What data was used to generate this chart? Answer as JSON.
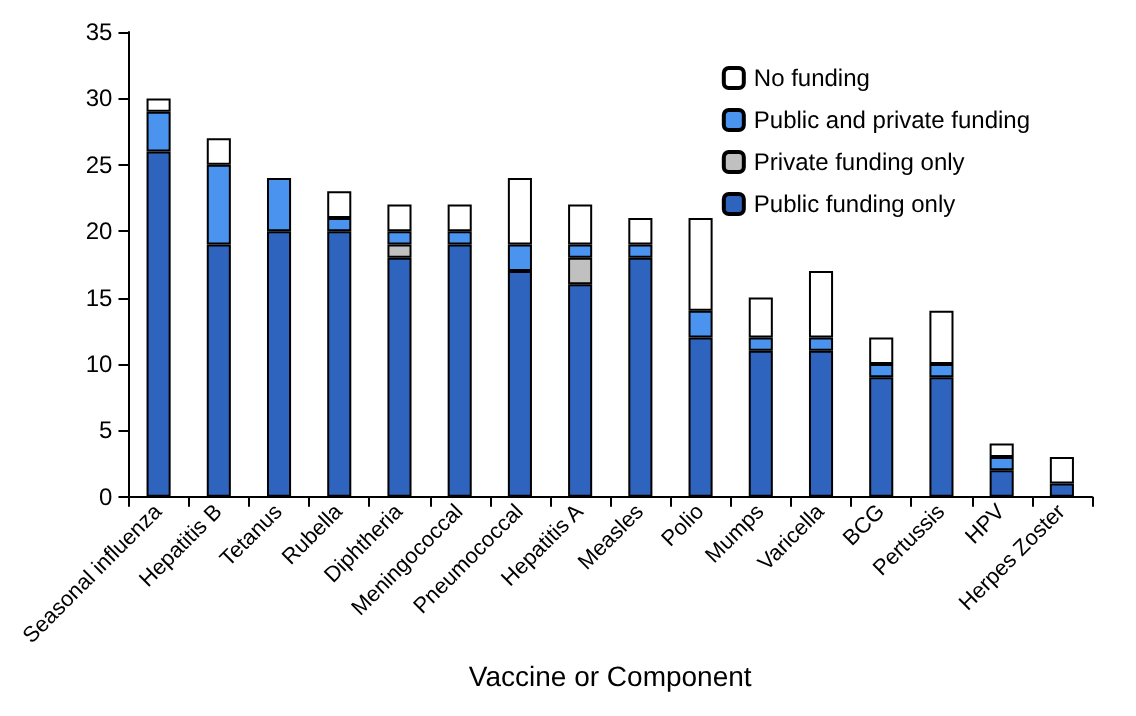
{
  "chart_data": {
    "type": "bar",
    "stacked": true,
    "xlabel": "Vaccine or Component",
    "categories": [
      "Seasonal influenza",
      "Hepatitis B",
      "Tetanus",
      "Rubella",
      "Diphtheria",
      "Meningococcal",
      "Pneumococcal",
      "Hepatitis A",
      "Measles",
      "Polio",
      "Mumps",
      "Varicella",
      "BCG",
      "Pertussis",
      "HPV",
      "Herpes Zoster"
    ],
    "series": [
      {
        "name": "Public funding only",
        "color": "#2e64be",
        "values": [
          26,
          19,
          20,
          20,
          18,
          19,
          17,
          16,
          18,
          12,
          11,
          11,
          9,
          9,
          2,
          1
        ]
      },
      {
        "name": "Private funding only",
        "color": "#c0c0c0",
        "values": [
          0,
          0,
          0,
          0,
          1,
          0,
          0,
          2,
          0,
          0,
          0,
          0,
          0,
          0,
          0,
          0
        ]
      },
      {
        "name": "Public and private funding",
        "color": "#4a94f0",
        "values": [
          3,
          6,
          4,
          1,
          1,
          1,
          2,
          1,
          1,
          2,
          1,
          1,
          1,
          1,
          1,
          0
        ]
      },
      {
        "name": "No funding",
        "color": "#ffffff",
        "values": [
          1,
          2,
          0,
          2,
          2,
          2,
          5,
          3,
          2,
          7,
          3,
          5,
          2,
          4,
          1,
          2
        ]
      }
    ],
    "ylim": [
      0,
      35
    ],
    "yticks": [
      0,
      5,
      10,
      15,
      20,
      25,
      30,
      35
    ],
    "grid": false,
    "legend": "top right"
  }
}
